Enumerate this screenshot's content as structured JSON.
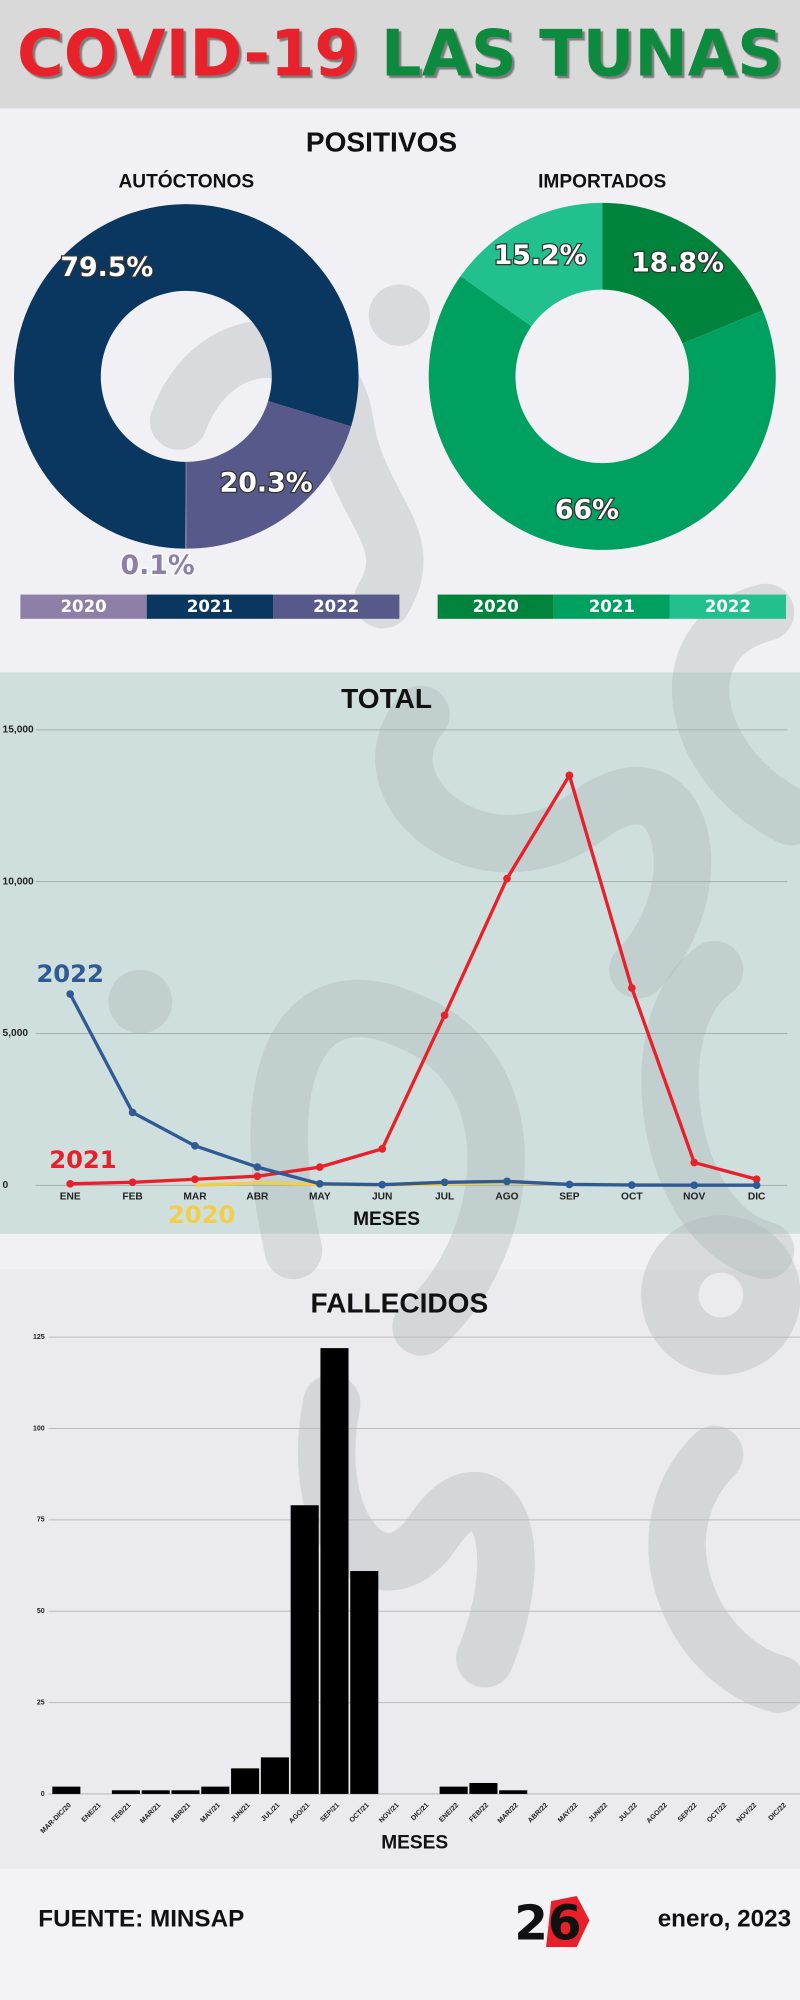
{
  "header": {
    "title_red": "COVID-19",
    "title_green": "LAS TUNAS"
  },
  "positivos_title": "POSITIVOS",
  "chart_data": [
    {
      "type": "pie",
      "title": "AUTÓCTONOS",
      "categories": [
        "2020",
        "2021",
        "2022"
      ],
      "values": [
        0.1,
        79.5,
        20.3
      ],
      "value_labels": [
        "0.1%",
        "79.5%",
        "20.3%"
      ],
      "colors": [
        "#8e7fa8",
        "#0a3760",
        "#56598a"
      ]
    },
    {
      "type": "pie",
      "title": "IMPORTADOS",
      "categories": [
        "2020",
        "2021",
        "2022"
      ],
      "values": [
        18.8,
        66,
        15.2
      ],
      "value_labels": [
        "18.8%",
        "66%",
        "15.2%"
      ],
      "colors": [
        "#00833a",
        "#00a060",
        "#22c08e"
      ]
    },
    {
      "type": "line",
      "title": "TOTAL",
      "x_label": "MESES",
      "categories": [
        "ENE",
        "FEB",
        "MAR",
        "ABR",
        "MAY",
        "JUN",
        "JUL",
        "AGO",
        "SEP",
        "OCT",
        "NOV",
        "DIC"
      ],
      "ylim": [
        0,
        15000
      ],
      "yticks": [
        0,
        {
          "value": 5000,
          "label": "5,000"
        },
        {
          "value": 10000,
          "label": "10,000"
        },
        {
          "value": 15000,
          "label": "15,000"
        }
      ],
      "grid": true,
      "series": [
        {
          "name": "2020",
          "color": "#f2cf4a",
          "markers": false,
          "values": [
            null,
            null,
            5,
            80,
            30,
            10,
            40,
            90,
            40,
            20,
            5,
            10
          ]
        },
        {
          "name": "2021",
          "color": "#e8202a",
          "markers": true,
          "values": [
            50,
            100,
            200,
            300,
            600,
            1200,
            5600,
            10100,
            13500,
            6500,
            750,
            200
          ]
        },
        {
          "name": "2022",
          "color": "#2f5a96",
          "markers": true,
          "values": [
            6300,
            2400,
            1300,
            600,
            50,
            20,
            100,
            130,
            30,
            10,
            5,
            5
          ]
        }
      ]
    },
    {
      "type": "bar",
      "title": "FALLECIDOS",
      "x_label": "MESES",
      "color": "#000000",
      "categories": [
        "MAR-DIC/20",
        "ENE/21",
        "FEB/21",
        "MAR/21",
        "ABR/21",
        "MAY/21",
        "JUN/21",
        "JUL/21",
        "AGO/21",
        "SEP/21",
        "OCT/21",
        "NOV/21",
        "DIC/21",
        "ENE/22",
        "FEB/22",
        "MAR/22",
        "ABR/22",
        "MAY/22",
        "JUN/22",
        "JUL/22",
        "AGO/22",
        "SEP/22",
        "OCT/22",
        "NOV/22",
        "DIC/22"
      ],
      "values": [
        2,
        0,
        1,
        1,
        1,
        2,
        7,
        10,
        79,
        122,
        61,
        0,
        0,
        2,
        3,
        1,
        0,
        0,
        0,
        0,
        0,
        0,
        0,
        0,
        0
      ],
      "ylim": [
        0,
        125
      ],
      "yticks": [
        0,
        25,
        50,
        75,
        100,
        125
      ],
      "grid": true
    }
  ],
  "footer": {
    "source": "FUENTE: MINSAP",
    "logo": "26",
    "date": "enero, 2023"
  }
}
